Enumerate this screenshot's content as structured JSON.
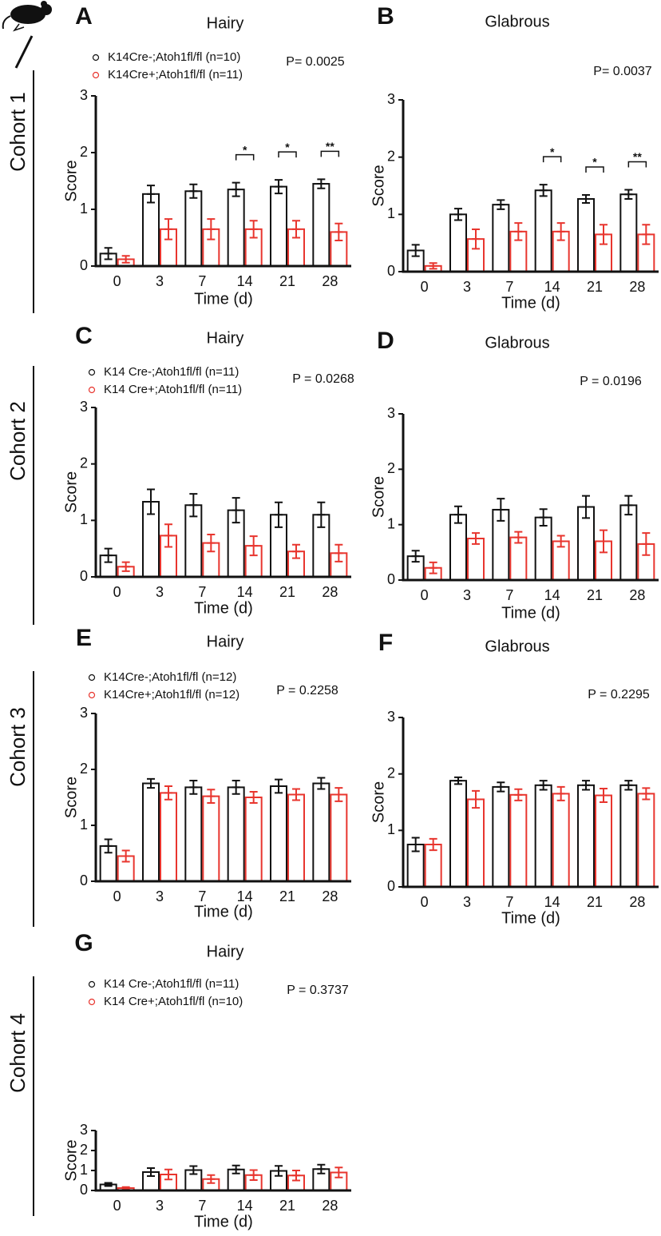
{
  "cohorts": [
    "Cohort 1",
    "Cohort 2",
    "Cohort 3",
    "Cohort 4"
  ],
  "chart_data": [
    {
      "type": "bar",
      "panel": "A",
      "title": "Hairy",
      "xlabel": "Time (d)",
      "ylabel": "Score",
      "categories": [
        "0",
        "3",
        "7",
        "14",
        "21",
        "28"
      ],
      "ylim": [
        0,
        3
      ],
      "yticks": [
        0,
        1,
        2,
        3
      ],
      "p_value": "P= 0.0025",
      "significance": [
        null,
        null,
        null,
        "*",
        "*",
        "**"
      ],
      "series": [
        {
          "name": "K14Cre-;Atoh1fl/fl (n=10)",
          "color": "#111111",
          "values": [
            0.22,
            1.27,
            1.32,
            1.35,
            1.4,
            1.45
          ],
          "errors": [
            0.1,
            0.15,
            0.12,
            0.12,
            0.12,
            0.08
          ]
        },
        {
          "name": "K14Cre+;Atoh1fl/fl (n=11)",
          "color": "#e8352e",
          "values": [
            0.12,
            0.65,
            0.65,
            0.65,
            0.65,
            0.6
          ],
          "errors": [
            0.06,
            0.18,
            0.18,
            0.15,
            0.15,
            0.15
          ]
        }
      ]
    },
    {
      "type": "bar",
      "panel": "B",
      "title": "Glabrous",
      "xlabel": "Time (d)",
      "ylabel": "Score",
      "categories": [
        "0",
        "3",
        "7",
        "14",
        "21",
        "28"
      ],
      "ylim": [
        0,
        3
      ],
      "yticks": [
        0,
        1,
        2,
        3
      ],
      "p_value": "P= 0.0037",
      "significance": [
        null,
        null,
        null,
        "*",
        "*",
        "**"
      ],
      "series": [
        {
          "color": "#111111",
          "values": [
            0.37,
            1.0,
            1.17,
            1.42,
            1.27,
            1.35
          ],
          "errors": [
            0.1,
            0.1,
            0.08,
            0.1,
            0.07,
            0.08
          ]
        },
        {
          "color": "#e8352e",
          "values": [
            0.1,
            0.57,
            0.7,
            0.7,
            0.65,
            0.65
          ],
          "errors": [
            0.05,
            0.17,
            0.15,
            0.15,
            0.17,
            0.17
          ]
        }
      ]
    },
    {
      "type": "bar",
      "panel": "C",
      "title": "Hairy",
      "xlabel": "Time (d)",
      "ylabel": "Score",
      "categories": [
        "0",
        "3",
        "7",
        "14",
        "21",
        "28"
      ],
      "ylim": [
        0,
        3
      ],
      "yticks": [
        0,
        1,
        2,
        3
      ],
      "p_value": "P = 0.0268",
      "series": [
        {
          "name": "K14 Cre-;Atoh1fl/fl (n=11)",
          "color": "#111111",
          "values": [
            0.38,
            1.33,
            1.27,
            1.18,
            1.1,
            1.1
          ],
          "errors": [
            0.12,
            0.22,
            0.2,
            0.22,
            0.22,
            0.22
          ]
        },
        {
          "name": "K14 Cre+;Atoh1fl/fl (n=11)",
          "color": "#e8352e",
          "values": [
            0.18,
            0.73,
            0.6,
            0.55,
            0.45,
            0.42
          ],
          "errors": [
            0.08,
            0.2,
            0.15,
            0.17,
            0.12,
            0.15
          ]
        }
      ]
    },
    {
      "type": "bar",
      "panel": "D",
      "title": "Glabrous",
      "xlabel": "Time (d)",
      "ylabel": "Score",
      "categories": [
        "0",
        "3",
        "7",
        "14",
        "21",
        "28"
      ],
      "ylim": [
        0,
        3
      ],
      "yticks": [
        0,
        1,
        2,
        3
      ],
      "p_value": "P = 0.0196",
      "series": [
        {
          "color": "#111111",
          "values": [
            0.43,
            1.18,
            1.27,
            1.13,
            1.32,
            1.35
          ],
          "errors": [
            0.1,
            0.15,
            0.2,
            0.15,
            0.2,
            0.17
          ]
        },
        {
          "color": "#e8352e",
          "values": [
            0.22,
            0.75,
            0.77,
            0.7,
            0.7,
            0.65
          ],
          "errors": [
            0.1,
            0.1,
            0.1,
            0.1,
            0.2,
            0.2
          ]
        }
      ]
    },
    {
      "type": "bar",
      "panel": "E",
      "title": "Hairy",
      "xlabel": "Time (d)",
      "ylabel": "Score",
      "categories": [
        "0",
        "3",
        "7",
        "14",
        "21",
        "28"
      ],
      "ylim": [
        0,
        3
      ],
      "yticks": [
        0,
        1,
        2,
        3
      ],
      "p_value": "P = 0.2258",
      "series": [
        {
          "name": "K14Cre-;Atoh1fl/fl (n=12)",
          "color": "#111111",
          "values": [
            0.63,
            1.75,
            1.68,
            1.68,
            1.7,
            1.75
          ],
          "errors": [
            0.12,
            0.08,
            0.12,
            0.12,
            0.12,
            0.1
          ]
        },
        {
          "name": "K14Cre+;Atoh1fl/fl (n=12)",
          "color": "#e8352e",
          "values": [
            0.45,
            1.58,
            1.52,
            1.5,
            1.55,
            1.55
          ],
          "errors": [
            0.1,
            0.12,
            0.12,
            0.1,
            0.1,
            0.12
          ]
        }
      ]
    },
    {
      "type": "bar",
      "panel": "F",
      "title": "Glabrous",
      "xlabel": "Time (d)",
      "ylabel": "Score",
      "categories": [
        "0",
        "3",
        "7",
        "14",
        "21",
        "28"
      ],
      "ylim": [
        0,
        3
      ],
      "yticks": [
        0,
        1,
        2,
        3
      ],
      "p_value": "P = 0.2295",
      "series": [
        {
          "color": "#111111",
          "values": [
            0.75,
            1.88,
            1.77,
            1.8,
            1.8,
            1.8
          ],
          "errors": [
            0.12,
            0.06,
            0.08,
            0.08,
            0.08,
            0.08
          ]
        },
        {
          "color": "#e8352e",
          "values": [
            0.75,
            1.55,
            1.63,
            1.65,
            1.62,
            1.65
          ],
          "errors": [
            0.1,
            0.15,
            0.1,
            0.12,
            0.12,
            0.1
          ]
        }
      ]
    },
    {
      "type": "bar",
      "panel": "G",
      "title": "Hairy",
      "xlabel": "Time (d)",
      "ylabel": "Score",
      "categories": [
        "0",
        "3",
        "7",
        "14",
        "21",
        "28"
      ],
      "ylim": [
        0,
        3
      ],
      "yticks": [
        0,
        1,
        2,
        3
      ],
      "p_value": "P = 0.3737",
      "series": [
        {
          "name": "K14 Cre-;Atoh1fl/fl (n=11)",
          "color": "#111111",
          "values": [
            0.3,
            0.92,
            1.02,
            1.05,
            0.98,
            1.07
          ],
          "errors": [
            0.08,
            0.2,
            0.2,
            0.2,
            0.25,
            0.22
          ]
        },
        {
          "name": "K14 Cre+;Atoh1fl/fl (n=10)",
          "color": "#e8352e",
          "values": [
            0.12,
            0.8,
            0.57,
            0.77,
            0.75,
            0.9
          ],
          "errors": [
            0.05,
            0.25,
            0.2,
            0.25,
            0.25,
            0.25
          ]
        }
      ]
    }
  ]
}
